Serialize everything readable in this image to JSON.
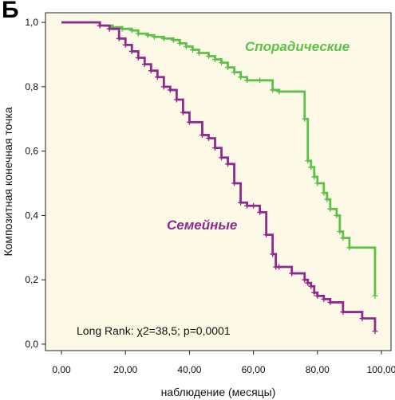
{
  "panel_letter": "Б",
  "chart_data": {
    "type": "line",
    "title": "",
    "xlabel": "наблюдение (месяцы)",
    "ylabel": "Композитная конечная точка",
    "xlim": [
      -5,
      103
    ],
    "ylim": [
      -0.02,
      1.03
    ],
    "xticks": [
      0,
      20,
      40,
      60,
      80,
      100
    ],
    "xtick_labels": [
      "0,00",
      "20,00",
      "40,00",
      "60,00",
      "80,00",
      "100,00"
    ],
    "yticks": [
      0,
      0.2,
      0.4,
      0.6,
      0.8,
      1.0
    ],
    "ytick_labels": [
      "0,0",
      "0,2",
      "0,4",
      "0,6",
      "0,8",
      "1,0"
    ],
    "grid": false,
    "background": "#fcfae6",
    "annotation": "Long Rank: χ2=38,5; p=0,0001",
    "series": [
      {
        "name": "Спорадические",
        "color": "#5ec04a",
        "x": [
          0,
          12,
          16,
          19,
          22,
          24,
          27,
          29,
          32,
          35,
          37,
          39,
          41,
          43,
          46,
          48,
          50,
          52,
          54,
          56,
          58,
          62,
          66,
          68,
          76,
          77,
          78,
          79,
          80,
          82,
          83,
          84,
          86,
          87,
          88,
          90,
          98
        ],
        "y": [
          1.0,
          0.99,
          0.985,
          0.98,
          0.975,
          0.965,
          0.96,
          0.955,
          0.95,
          0.945,
          0.935,
          0.925,
          0.915,
          0.905,
          0.895,
          0.885,
          0.875,
          0.86,
          0.845,
          0.83,
          0.82,
          0.82,
          0.79,
          0.785,
          0.7,
          0.57,
          0.55,
          0.52,
          0.5,
          0.47,
          0.45,
          0.42,
          0.4,
          0.35,
          0.33,
          0.3,
          0.15
        ]
      },
      {
        "name": "Семейные",
        "color": "#8e2a8e",
        "x": [
          0,
          12,
          15,
          18,
          20,
          22,
          24,
          26,
          28,
          30,
          32,
          34,
          36,
          38,
          40,
          44,
          46,
          48,
          50,
          52,
          54,
          56,
          58,
          60,
          62,
          64,
          66,
          67,
          68,
          72,
          76,
          77,
          78,
          79,
          80,
          82,
          84,
          88,
          94,
          98
        ],
        "y": [
          1.0,
          0.99,
          0.98,
          0.95,
          0.93,
          0.91,
          0.89,
          0.87,
          0.85,
          0.83,
          0.8,
          0.79,
          0.76,
          0.72,
          0.69,
          0.65,
          0.64,
          0.61,
          0.58,
          0.56,
          0.5,
          0.44,
          0.43,
          0.43,
          0.41,
          0.34,
          0.28,
          0.24,
          0.24,
          0.22,
          0.2,
          0.19,
          0.18,
          0.16,
          0.15,
          0.14,
          0.13,
          0.1,
          0.08,
          0.04
        ]
      }
    ]
  }
}
